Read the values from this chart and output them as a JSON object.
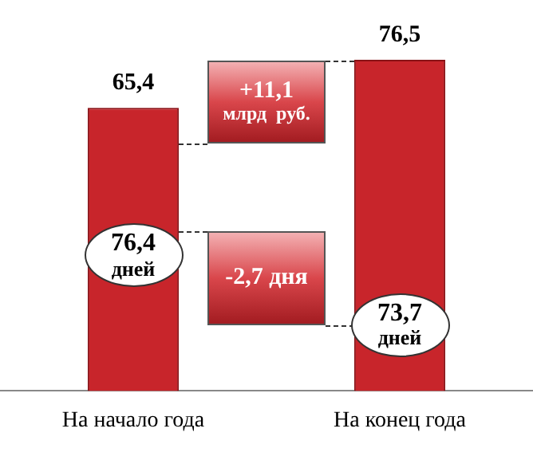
{
  "chart_data": {
    "type": "bar",
    "categories": [
      "На начало года",
      "На конец года"
    ],
    "values": [
      65.4,
      76.5
    ],
    "value_labels": [
      "65,4",
      "76,5"
    ],
    "color": "#c8252b",
    "grid": false,
    "legend": false,
    "tick_labels": "x",
    "annotations": [
      "+11,1 млрд  руб.",
      "-2,7 дня",
      "76,4 дней",
      "73,7 дней"
    ]
  }
}
